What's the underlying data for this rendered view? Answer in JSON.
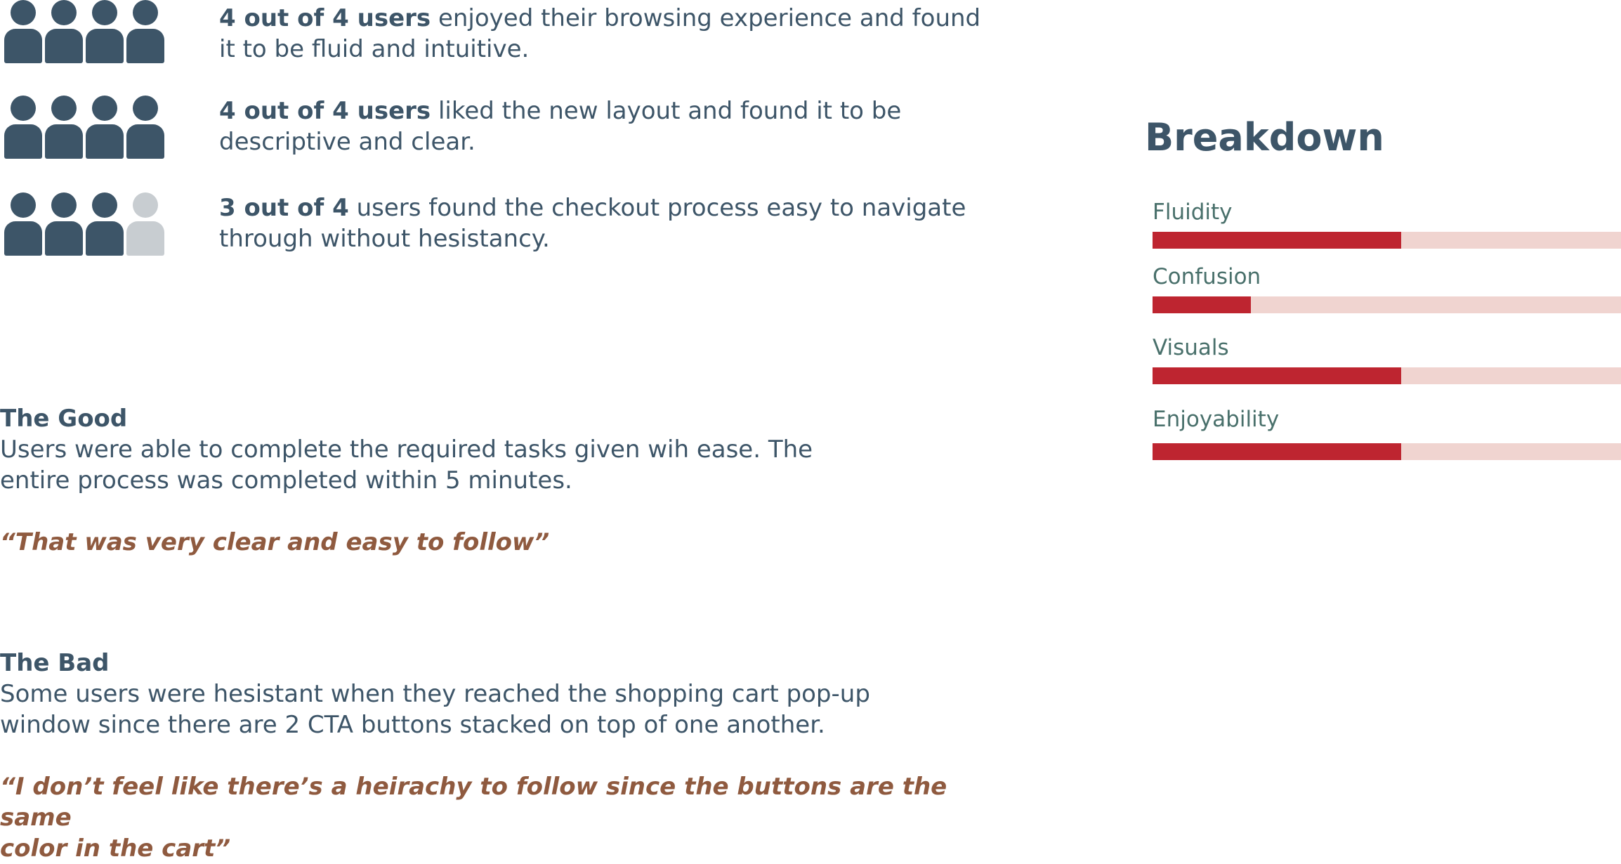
{
  "stats": [
    {
      "users_positive": 4,
      "users_total": 4,
      "emphasis": "4 out of 4 users",
      "line1": " enjoyed their browsing experience and found",
      "line2": "it to be fluid and intuitive."
    },
    {
      "users_positive": 4,
      "users_total": 4,
      "emphasis": "4 out of 4 users",
      "line1": " liked the new layout and found it to be",
      "line2": "descriptive and clear."
    },
    {
      "users_positive": 3,
      "users_total": 4,
      "emphasis": "3 out of 4",
      "line1": " users found the checkout process easy to navigate",
      "line2": "through without hesistancy."
    }
  ],
  "icons": {
    "person": "user-icon"
  },
  "colors": {
    "primary": "#3d5568",
    "user_inactive": "#c8cdd1",
    "bar_fill": "#be2530",
    "bar_track": "#f0d4d0",
    "metric_label": "#49706b",
    "quote": "#8f5a3f"
  },
  "breakdown": {
    "title": "Breakdown",
    "metrics": [
      {
        "label": "Fluidity",
        "fraction": 0.53
      },
      {
        "label": "Confusion",
        "fraction": 0.21
      },
      {
        "label": "Visuals",
        "fraction": 0.53
      },
      {
        "label": "Enjoyability",
        "fraction": 0.53
      }
    ]
  },
  "good": {
    "heading": "The Good",
    "body_line1": "Users were able to complete the required tasks given wih ease. The",
    "body_line2": "entire process was completed within 5 minutes.",
    "quote": "“That was very clear and easy to follow”"
  },
  "bad": {
    "heading": "The Bad",
    "body_line1": "Some users were hesistant when they reached the shopping cart pop-up",
    "body_line2": "window since there are 2 CTA buttons stacked on top of one another.",
    "quote_line1": "“I don’t feel like there’s a heirachy to follow since the buttons are the same",
    "quote_line2": "color in the cart”"
  }
}
